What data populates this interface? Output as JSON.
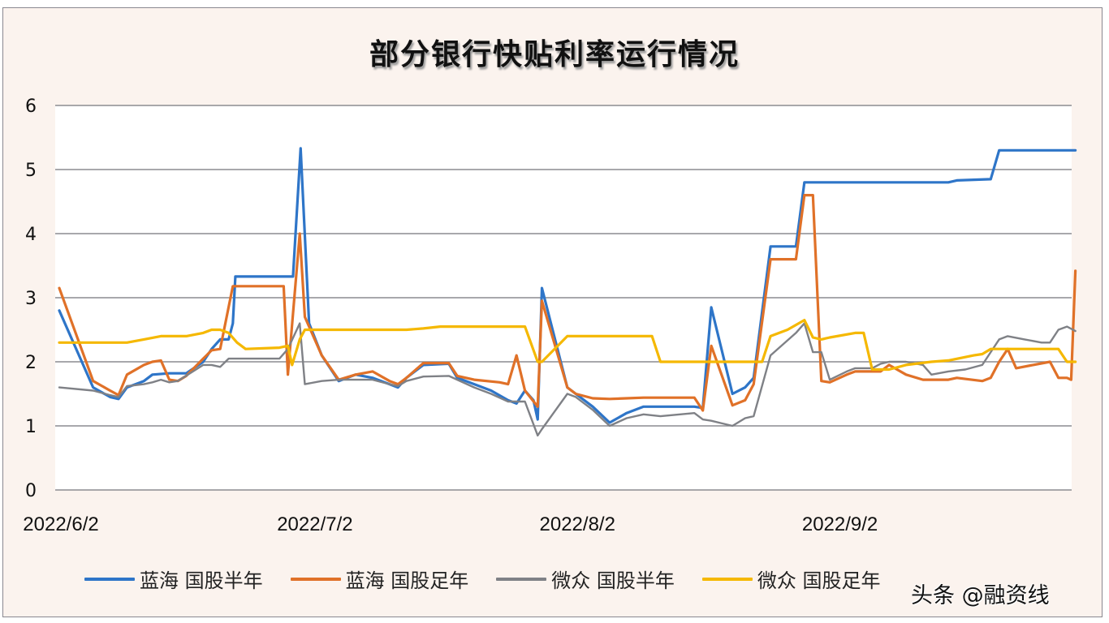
{
  "chart_data": {
    "type": "line",
    "title": "部分银行快贴利率运行情况",
    "xlabel": "",
    "ylabel": "",
    "ylim": [
      0,
      6
    ],
    "yticks": [
      0,
      1,
      2,
      3,
      4,
      5,
      6
    ],
    "xticks": [
      {
        "label": "2022/6/2",
        "day": 0
      },
      {
        "label": "2022/7/2",
        "day": 30
      },
      {
        "label": "2022/8/2",
        "day": 61
      },
      {
        "label": "2022/9/2",
        "day": 92
      }
    ],
    "x_unit": "days since 2022/6/2",
    "grid": "horizontal",
    "legend_position": "bottom",
    "series": [
      {
        "name": "蓝海 国股半年",
        "color": "#2e75c8",
        "points": [
          [
            0,
            2.8
          ],
          [
            4,
            1.6
          ],
          [
            6,
            1.45
          ],
          [
            7,
            1.42
          ],
          [
            8,
            1.6
          ],
          [
            10,
            1.7
          ],
          [
            11,
            1.8
          ],
          [
            13,
            1.82
          ],
          [
            15,
            1.82
          ],
          [
            17,
            2.0
          ],
          [
            18,
            2.2
          ],
          [
            19,
            2.35
          ],
          [
            20,
            2.35
          ],
          [
            20.5,
            2.6
          ],
          [
            20.8,
            3.33
          ],
          [
            27,
            3.33
          ],
          [
            27.6,
            3.33
          ],
          [
            28.5,
            5.33
          ],
          [
            29.5,
            2.6
          ],
          [
            31,
            2.1
          ],
          [
            33,
            1.7
          ],
          [
            35,
            1.8
          ],
          [
            37,
            1.75
          ],
          [
            39,
            1.65
          ],
          [
            40,
            1.6
          ],
          [
            41,
            1.75
          ],
          [
            43,
            1.95
          ],
          [
            46,
            1.97
          ],
          [
            47,
            1.75
          ],
          [
            49,
            1.65
          ],
          [
            51,
            1.55
          ],
          [
            53,
            1.4
          ],
          [
            54,
            1.35
          ],
          [
            55,
            1.55
          ],
          [
            56,
            1.4
          ],
          [
            56.5,
            1.1
          ],
          [
            57,
            3.15
          ],
          [
            60,
            1.6
          ],
          [
            61,
            1.5
          ],
          [
            63,
            1.3
          ],
          [
            65,
            1.05
          ],
          [
            67,
            1.2
          ],
          [
            69,
            1.3
          ],
          [
            71,
            1.3
          ],
          [
            75,
            1.3
          ],
          [
            76,
            1.28
          ],
          [
            77,
            2.85
          ],
          [
            79.5,
            1.5
          ],
          [
            81,
            1.6
          ],
          [
            82,
            1.75
          ],
          [
            84,
            3.8
          ],
          [
            87,
            3.8
          ],
          [
            88,
            4.8
          ],
          [
            105,
            4.8
          ],
          [
            106,
            4.83
          ],
          [
            110,
            4.85
          ],
          [
            111,
            5.3
          ],
          [
            120,
            5.3
          ]
        ]
      },
      {
        "name": "蓝海 国股足年",
        "color": "#e07128",
        "points": [
          [
            0,
            3.15
          ],
          [
            4,
            1.7
          ],
          [
            6,
            1.55
          ],
          [
            7,
            1.48
          ],
          [
            8,
            1.8
          ],
          [
            10,
            1.95
          ],
          [
            11,
            2.0
          ],
          [
            12,
            2.02
          ],
          [
            13,
            1.72
          ],
          [
            14,
            1.7
          ],
          [
            15,
            1.78
          ],
          [
            17,
            2.05
          ],
          [
            18,
            2.18
          ],
          [
            19,
            2.2
          ],
          [
            20.5,
            3.18
          ],
          [
            26,
            3.18
          ],
          [
            26.5,
            3.18
          ],
          [
            27,
            1.8
          ],
          [
            28.4,
            4.0
          ],
          [
            29,
            2.7
          ],
          [
            31,
            2.1
          ],
          [
            33,
            1.72
          ],
          [
            35,
            1.8
          ],
          [
            37,
            1.85
          ],
          [
            39,
            1.7
          ],
          [
            40,
            1.65
          ],
          [
            41,
            1.75
          ],
          [
            43,
            1.98
          ],
          [
            46,
            1.98
          ],
          [
            47,
            1.78
          ],
          [
            49,
            1.72
          ],
          [
            52,
            1.68
          ],
          [
            53,
            1.65
          ],
          [
            54,
            2.1
          ],
          [
            55,
            1.55
          ],
          [
            56.5,
            1.3
          ],
          [
            57,
            2.95
          ],
          [
            60,
            1.6
          ],
          [
            61,
            1.5
          ],
          [
            63,
            1.43
          ],
          [
            65,
            1.42
          ],
          [
            67,
            1.43
          ],
          [
            69,
            1.44
          ],
          [
            71,
            1.44
          ],
          [
            75,
            1.44
          ],
          [
            76,
            1.24
          ],
          [
            77,
            2.25
          ],
          [
            79.5,
            1.32
          ],
          [
            81,
            1.4
          ],
          [
            82,
            1.65
          ],
          [
            84,
            3.6
          ],
          [
            87,
            3.6
          ],
          [
            88,
            4.6
          ],
          [
            89,
            4.6
          ],
          [
            90,
            1.7
          ],
          [
            91,
            1.68
          ],
          [
            93,
            1.8
          ],
          [
            94,
            1.85
          ],
          [
            97,
            1.85
          ],
          [
            98,
            1.95
          ],
          [
            100,
            1.8
          ],
          [
            102,
            1.72
          ],
          [
            105,
            1.72
          ],
          [
            106,
            1.75
          ],
          [
            109,
            1.7
          ],
          [
            110,
            1.75
          ],
          [
            111,
            2.0
          ],
          [
            112,
            2.2
          ],
          [
            113,
            1.9
          ],
          [
            115,
            1.95
          ],
          [
            117,
            2.0
          ],
          [
            118,
            1.75
          ],
          [
            119,
            1.75
          ],
          [
            119.5,
            1.72
          ],
          [
            120,
            3.42
          ]
        ]
      },
      {
        "name": "微众 国股半年",
        "color": "#7f8186",
        "points": [
          [
            0,
            1.6
          ],
          [
            4,
            1.55
          ],
          [
            6,
            1.48
          ],
          [
            7,
            1.45
          ],
          [
            8,
            1.62
          ],
          [
            10,
            1.65
          ],
          [
            11,
            1.68
          ],
          [
            12,
            1.72
          ],
          [
            13,
            1.68
          ],
          [
            14,
            1.7
          ],
          [
            17,
            1.95
          ],
          [
            18,
            1.95
          ],
          [
            19,
            1.92
          ],
          [
            20,
            2.05
          ],
          [
            25,
            2.05
          ],
          [
            26,
            2.05
          ],
          [
            27,
            2.2
          ],
          [
            28.4,
            2.6
          ],
          [
            29,
            1.65
          ],
          [
            31,
            1.7
          ],
          [
            33,
            1.72
          ],
          [
            35,
            1.72
          ],
          [
            37,
            1.72
          ],
          [
            39,
            1.65
          ],
          [
            40,
            1.62
          ],
          [
            41,
            1.7
          ],
          [
            43,
            1.77
          ],
          [
            46,
            1.78
          ],
          [
            47,
            1.72
          ],
          [
            49,
            1.6
          ],
          [
            51,
            1.5
          ],
          [
            53,
            1.38
          ],
          [
            55,
            1.38
          ],
          [
            56.5,
            0.85
          ],
          [
            57,
            0.95
          ],
          [
            60,
            1.5
          ],
          [
            61,
            1.45
          ],
          [
            63,
            1.25
          ],
          [
            65,
            1.0
          ],
          [
            67,
            1.12
          ],
          [
            69,
            1.18
          ],
          [
            71,
            1.15
          ],
          [
            75,
            1.2
          ],
          [
            76,
            1.1
          ],
          [
            77,
            1.08
          ],
          [
            79.5,
            1.0
          ],
          [
            81,
            1.12
          ],
          [
            82,
            1.15
          ],
          [
            84,
            2.1
          ],
          [
            87,
            2.45
          ],
          [
            88,
            2.6
          ],
          [
            89,
            2.15
          ],
          [
            90,
            2.15
          ],
          [
            91,
            1.72
          ],
          [
            93,
            1.85
          ],
          [
            94,
            1.9
          ],
          [
            96,
            1.9
          ],
          [
            97,
            1.97
          ],
          [
            98,
            2.0
          ],
          [
            100,
            2.0
          ],
          [
            102,
            1.95
          ],
          [
            103,
            1.8
          ],
          [
            105,
            1.85
          ],
          [
            107,
            1.88
          ],
          [
            109,
            1.95
          ],
          [
            110,
            2.15
          ],
          [
            111,
            2.35
          ],
          [
            112,
            2.4
          ],
          [
            114,
            2.35
          ],
          [
            116,
            2.3
          ],
          [
            117,
            2.3
          ],
          [
            118,
            2.5
          ],
          [
            119,
            2.55
          ],
          [
            120,
            2.48
          ]
        ]
      },
      {
        "name": "微众 国股足年",
        "color": "#f5b800",
        "points": [
          [
            0,
            2.3
          ],
          [
            8,
            2.3
          ],
          [
            10,
            2.35
          ],
          [
            12,
            2.4
          ],
          [
            15,
            2.4
          ],
          [
            17,
            2.45
          ],
          [
            18,
            2.5
          ],
          [
            19,
            2.5
          ],
          [
            20,
            2.45
          ],
          [
            21,
            2.3
          ],
          [
            22,
            2.2
          ],
          [
            26,
            2.22
          ],
          [
            27,
            2.25
          ],
          [
            27.5,
            1.95
          ],
          [
            28.4,
            2.35
          ],
          [
            29,
            2.5
          ],
          [
            41,
            2.5
          ],
          [
            43,
            2.52
          ],
          [
            45,
            2.55
          ],
          [
            55,
            2.55
          ],
          [
            56.5,
            2.0
          ],
          [
            57,
            2.0
          ],
          [
            60,
            2.4
          ],
          [
            70,
            2.4
          ],
          [
            71,
            2.0
          ],
          [
            82,
            2.0
          ],
          [
            83,
            2.0
          ],
          [
            84,
            2.4
          ],
          [
            86,
            2.5
          ],
          [
            88,
            2.65
          ],
          [
            89,
            2.38
          ],
          [
            90,
            2.35
          ],
          [
            91,
            2.38
          ],
          [
            94,
            2.45
          ],
          [
            95,
            2.45
          ],
          [
            96,
            1.88
          ],
          [
            98,
            1.88
          ],
          [
            100,
            1.95
          ],
          [
            103,
            2.0
          ],
          [
            105,
            2.02
          ],
          [
            108,
            2.1
          ],
          [
            109,
            2.12
          ],
          [
            110,
            2.2
          ],
          [
            117,
            2.2
          ],
          [
            118,
            2.2
          ],
          [
            119,
            2.0
          ],
          [
            120,
            2.0
          ]
        ]
      }
    ]
  },
  "legend": {
    "items": [
      {
        "label": "蓝海 国股半年",
        "color": "#2e75c8"
      },
      {
        "label": "蓝海 国股足年",
        "color": "#e07128"
      },
      {
        "label": "微众 国股半年",
        "color": "#7f8186"
      },
      {
        "label": "微众 国股足年",
        "color": "#f5b800"
      }
    ]
  },
  "watermark": "头条 @融资线",
  "style": {
    "background": "#fbf3ee",
    "plot_background": "#ffffff",
    "gridline": "#8c8c90",
    "border": "#8a8890"
  }
}
